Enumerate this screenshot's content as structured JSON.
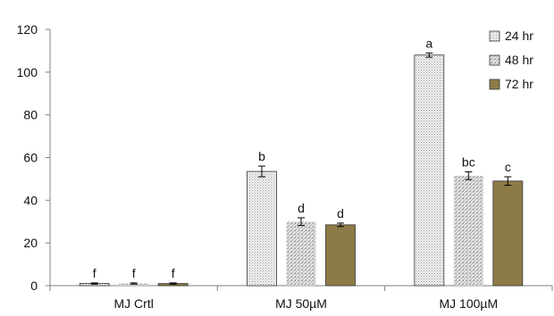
{
  "chart_data": {
    "type": "bar",
    "title": "",
    "xlabel": "",
    "ylabel": "",
    "categories": [
      "MJ Crtl",
      "MJ 50µM",
      "MJ 100µM"
    ],
    "ylim": [
      0,
      120
    ],
    "yticks": [
      0,
      20,
      40,
      60,
      80,
      100,
      120
    ],
    "grid": false,
    "legend_position": "top-right",
    "series": [
      {
        "name": "24 hr",
        "values": [
          1.0,
          53.5,
          108.0
        ],
        "errors": [
          0.3,
          2.5,
          1.0
        ],
        "letters": [
          "f",
          "b",
          "a"
        ],
        "fill": "#ececec",
        "pattern": "stipple"
      },
      {
        "name": "48 hr",
        "values": [
          1.0,
          30.0,
          51.5
        ],
        "errors": [
          0.3,
          1.8,
          1.8
        ],
        "letters": [
          "f",
          "d",
          "bc"
        ],
        "fill": "#bdbdbd",
        "pattern": "stipple-hatch"
      },
      {
        "name": "72 hr",
        "values": [
          1.0,
          28.5,
          49.0
        ],
        "errors": [
          0.3,
          0.8,
          2.0
        ],
        "letters": [
          "f",
          "d",
          "c"
        ],
        "fill": "#8d7b47",
        "pattern": "solid"
      }
    ]
  }
}
